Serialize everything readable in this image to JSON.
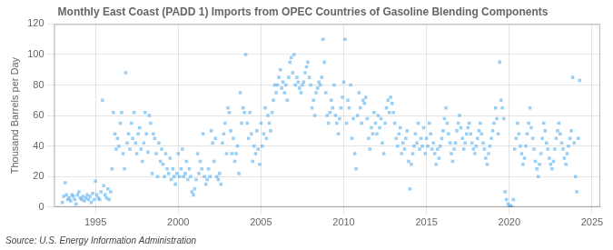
{
  "chart_data": {
    "type": "scatter",
    "title": "Monthly East Coast (PADD 1) Imports from OPEC Countries of Gasoline Blending Components",
    "ylabel": "Thousand Barrels per Day",
    "annotation": "Source: U.S. Energy Information Administration",
    "marker": "square",
    "grid": true,
    "xlim": [
      1992.5,
      2025.5
    ],
    "xticks": [
      1995,
      2000,
      2005,
      2010,
      2015,
      2020,
      2025
    ],
    "ylim": [
      0,
      120
    ],
    "yticks": [
      0,
      20,
      40,
      60,
      80,
      100,
      120
    ],
    "x": [
      1993,
      1993.08,
      1993.17,
      1993.25,
      1993.33,
      1993.42,
      1993.5,
      1993.58,
      1993.67,
      1993.75,
      1993.83,
      1993.92,
      1994,
      1994.08,
      1994.17,
      1994.25,
      1994.33,
      1994.42,
      1994.5,
      1994.58,
      1994.67,
      1994.75,
      1994.83,
      1994.92,
      1995,
      1995.08,
      1995.17,
      1995.25,
      1995.33,
      1995.42,
      1995.5,
      1995.58,
      1995.67,
      1995.75,
      1995.83,
      1995.92,
      1996,
      1996.08,
      1996.17,
      1996.25,
      1996.33,
      1996.42,
      1996.5,
      1996.58,
      1996.67,
      1996.75,
      1996.83,
      1996.92,
      1997,
      1997.08,
      1997.17,
      1997.25,
      1997.33,
      1997.42,
      1997.5,
      1997.58,
      1997.67,
      1997.75,
      1997.83,
      1997.92,
      1998,
      1998.08,
      1998.17,
      1998.25,
      1998.33,
      1998.42,
      1998.5,
      1998.58,
      1998.67,
      1998.75,
      1998.83,
      1998.92,
      1999,
      1999.08,
      1999.17,
      1999.25,
      1999.33,
      1999.42,
      1999.5,
      1999.58,
      1999.67,
      1999.75,
      1999.83,
      1999.92,
      2000,
      2000.08,
      2000.17,
      2000.25,
      2000.33,
      2000.42,
      2000.5,
      2000.58,
      2000.67,
      2000.75,
      2000.83,
      2000.92,
      2001,
      2001.08,
      2001.17,
      2001.25,
      2001.33,
      2001.42,
      2001.5,
      2001.58,
      2001.67,
      2001.75,
      2001.83,
      2001.92,
      2002,
      2002.08,
      2002.17,
      2002.25,
      2002.33,
      2002.42,
      2002.5,
      2002.58,
      2002.67,
      2002.75,
      2002.83,
      2002.92,
      2003,
      2003.08,
      2003.17,
      2003.25,
      2003.33,
      2003.42,
      2003.5,
      2003.58,
      2003.67,
      2003.75,
      2003.83,
      2003.92,
      2004,
      2004.08,
      2004.17,
      2004.25,
      2004.33,
      2004.42,
      2004.5,
      2004.58,
      2004.67,
      2004.75,
      2004.83,
      2004.92,
      2005,
      2005.08,
      2005.17,
      2005.25,
      2005.33,
      2005.42,
      2005.5,
      2005.58,
      2005.67,
      2005.75,
      2005.83,
      2005.92,
      2006,
      2006.08,
      2006.17,
      2006.25,
      2006.33,
      2006.42,
      2006.5,
      2006.58,
      2006.67,
      2006.75,
      2006.83,
      2006.92,
      2007,
      2007.08,
      2007.17,
      2007.25,
      2007.33,
      2007.42,
      2007.5,
      2007.58,
      2007.67,
      2007.75,
      2007.83,
      2007.92,
      2008,
      2008.08,
      2008.17,
      2008.25,
      2008.33,
      2008.42,
      2008.5,
      2008.58,
      2008.67,
      2008.75,
      2008.83,
      2008.92,
      2009,
      2009.08,
      2009.17,
      2009.25,
      2009.33,
      2009.42,
      2009.5,
      2009.58,
      2009.67,
      2009.75,
      2009.83,
      2009.92,
      2010,
      2010.08,
      2010.17,
      2010.25,
      2010.33,
      2010.42,
      2010.5,
      2010.58,
      2010.67,
      2010.75,
      2010.83,
      2010.92,
      2011,
      2011.08,
      2011.17,
      2011.25,
      2011.33,
      2011.42,
      2011.5,
      2011.58,
      2011.67,
      2011.75,
      2011.83,
      2011.92,
      2012,
      2012.08,
      2012.17,
      2012.25,
      2012.33,
      2012.42,
      2012.5,
      2012.58,
      2012.67,
      2012.75,
      2012.83,
      2012.92,
      2013,
      2013.08,
      2013.17,
      2013.25,
      2013.33,
      2013.42,
      2013.5,
      2013.58,
      2013.67,
      2013.75,
      2013.83,
      2013.92,
      2014,
      2014.08,
      2014.17,
      2014.25,
      2014.33,
      2014.42,
      2014.5,
      2014.58,
      2014.67,
      2014.75,
      2014.83,
      2014.92,
      2015,
      2015.08,
      2015.17,
      2015.25,
      2015.33,
      2015.42,
      2015.5,
      2015.58,
      2015.67,
      2015.75,
      2015.83,
      2015.92,
      2016,
      2016.08,
      2016.17,
      2016.25,
      2016.33,
      2016.42,
      2016.5,
      2016.58,
      2016.67,
      2016.75,
      2016.83,
      2016.92,
      2017,
      2017.08,
      2017.17,
      2017.25,
      2017.33,
      2017.42,
      2017.5,
      2017.58,
      2017.67,
      2017.75,
      2017.83,
      2017.92,
      2018,
      2018.08,
      2018.17,
      2018.25,
      2018.33,
      2018.42,
      2018.5,
      2018.58,
      2018.67,
      2018.75,
      2018.83,
      2018.92,
      2019,
      2019.08,
      2019.17,
      2019.25,
      2019.33,
      2019.42,
      2019.5,
      2019.58,
      2019.67,
      2019.75,
      2019.83,
      2019.92,
      2020,
      2020.08,
      2020.17,
      2020.25,
      2020.33,
      2020.42,
      2020.5,
      2020.58,
      2020.67,
      2020.75,
      2020.83,
      2020.92,
      2021,
      2021.08,
      2021.17,
      2021.25,
      2021.33,
      2021.42,
      2021.5,
      2021.58,
      2021.67,
      2021.75,
      2021.83,
      2021.92,
      2022,
      2022.08,
      2022.17,
      2022.25,
      2022.33,
      2022.42,
      2022.5,
      2022.58,
      2022.67,
      2022.75,
      2022.83,
      2022.92,
      2023,
      2023.08,
      2023.17,
      2023.25,
      2023.33,
      2023.42,
      2023.5,
      2023.58,
      2023.67,
      2023.75,
      2023.83,
      2023.92,
      2024,
      2024.08,
      2024.17,
      2024.25
    ],
    "values": [
      3,
      7,
      16,
      8,
      5,
      6,
      4,
      8,
      7,
      5,
      2,
      8,
      10,
      6,
      5,
      7,
      4,
      6,
      8,
      5,
      7,
      3,
      9,
      5,
      17,
      8,
      6,
      5,
      10,
      70,
      14,
      8,
      6,
      12,
      5,
      10,
      25,
      62,
      48,
      38,
      45,
      40,
      55,
      62,
      35,
      25,
      88,
      42,
      48,
      38,
      55,
      45,
      62,
      42,
      35,
      48,
      52,
      38,
      30,
      42,
      62,
      48,
      36,
      60,
      55,
      22,
      48,
      45,
      35,
      20,
      42,
      30,
      38,
      28,
      20,
      35,
      25,
      22,
      32,
      18,
      25,
      20,
      15,
      22,
      35,
      20,
      25,
      38,
      20,
      22,
      30,
      18,
      25,
      20,
      10,
      8,
      12,
      18,
      35,
      22,
      30,
      25,
      48,
      20,
      15,
      18,
      25,
      20,
      50,
      42,
      30,
      45,
      20,
      18,
      22,
      15,
      42,
      48,
      55,
      35,
      65,
      62,
      50,
      35,
      45,
      30,
      35,
      40,
      22,
      75,
      55,
      65,
      62,
      100,
      55,
      45,
      62,
      48,
      30,
      40,
      35,
      50,
      38,
      28,
      55,
      40,
      48,
      65,
      45,
      60,
      55,
      50,
      62,
      70,
      80,
      75,
      80,
      85,
      90,
      78,
      82,
      75,
      80,
      70,
      85,
      95,
      98,
      88,
      100,
      80,
      85,
      82,
      78,
      75,
      80,
      82,
      88,
      92,
      95,
      85,
      80,
      65,
      70,
      60,
      75,
      78,
      82,
      80,
      85,
      110,
      95,
      75,
      60,
      55,
      62,
      70,
      65,
      80,
      60,
      55,
      48,
      58,
      65,
      72,
      82,
      110,
      55,
      70,
      65,
      80,
      45,
      58,
      35,
      25,
      60,
      75,
      65,
      55,
      70,
      68,
      72,
      58,
      45,
      38,
      52,
      48,
      62,
      55,
      48,
      60,
      52,
      58,
      42,
      35,
      55,
      65,
      70,
      62,
      72,
      68,
      62,
      55,
      45,
      40,
      48,
      52,
      35,
      42,
      38,
      45,
      50,
      30,
      12,
      28,
      35,
      40,
      48,
      42,
      55,
      38,
      45,
      40,
      52,
      35,
      45,
      40,
      55,
      48,
      38,
      42,
      35,
      28,
      38,
      32,
      40,
      45,
      50,
      58,
      65,
      55,
      48,
      42,
      35,
      30,
      38,
      42,
      50,
      55,
      60,
      52,
      45,
      38,
      42,
      48,
      52,
      55,
      48,
      42,
      38,
      35,
      40,
      45,
      50,
      55,
      48,
      42,
      38,
      32,
      28,
      35,
      40,
      45,
      50,
      55,
      65,
      58,
      48,
      95,
      70,
      65,
      58,
      10,
      5,
      2,
      0,
      1,
      0,
      5,
      38,
      45,
      55,
      48,
      40,
      35,
      28,
      32,
      40,
      48,
      55,
      65,
      52,
      45,
      38,
      30,
      25,
      20,
      28,
      35,
      45,
      55,
      50,
      42,
      38,
      32,
      28,
      25,
      30,
      38,
      45,
      50,
      55,
      48,
      42,
      38,
      32,
      28,
      35,
      40,
      45,
      50,
      85,
      42,
      20,
      10,
      45,
      83
    ]
  }
}
